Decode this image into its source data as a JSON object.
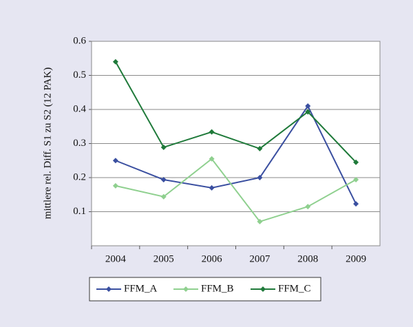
{
  "chart_data": {
    "type": "line",
    "y_label": "mittlere rel. Diff. S1 zu S2 (12 PAK)",
    "categories": [
      "2004",
      "2005",
      "2006",
      "2007",
      "2008",
      "2009"
    ],
    "series": [
      {
        "name": "FFM_A",
        "color": "#3a4fa0",
        "values": [
          0.25,
          0.194,
          0.17,
          0.2,
          0.41,
          0.123
        ]
      },
      {
        "name": "FFM_B",
        "color": "#8fd08f",
        "values": [
          0.176,
          0.144,
          0.255,
          0.071,
          0.115,
          0.194
        ]
      },
      {
        "name": "FFM_C",
        "color": "#1f7a3a",
        "values": [
          0.54,
          0.289,
          0.334,
          0.285,
          0.393,
          0.245
        ]
      }
    ],
    "ylim": [
      0,
      0.6
    ],
    "yticks": [
      0.1,
      0.2,
      0.3,
      0.4,
      0.5,
      0.6
    ],
    "grid": true,
    "legend": "bottom"
  }
}
